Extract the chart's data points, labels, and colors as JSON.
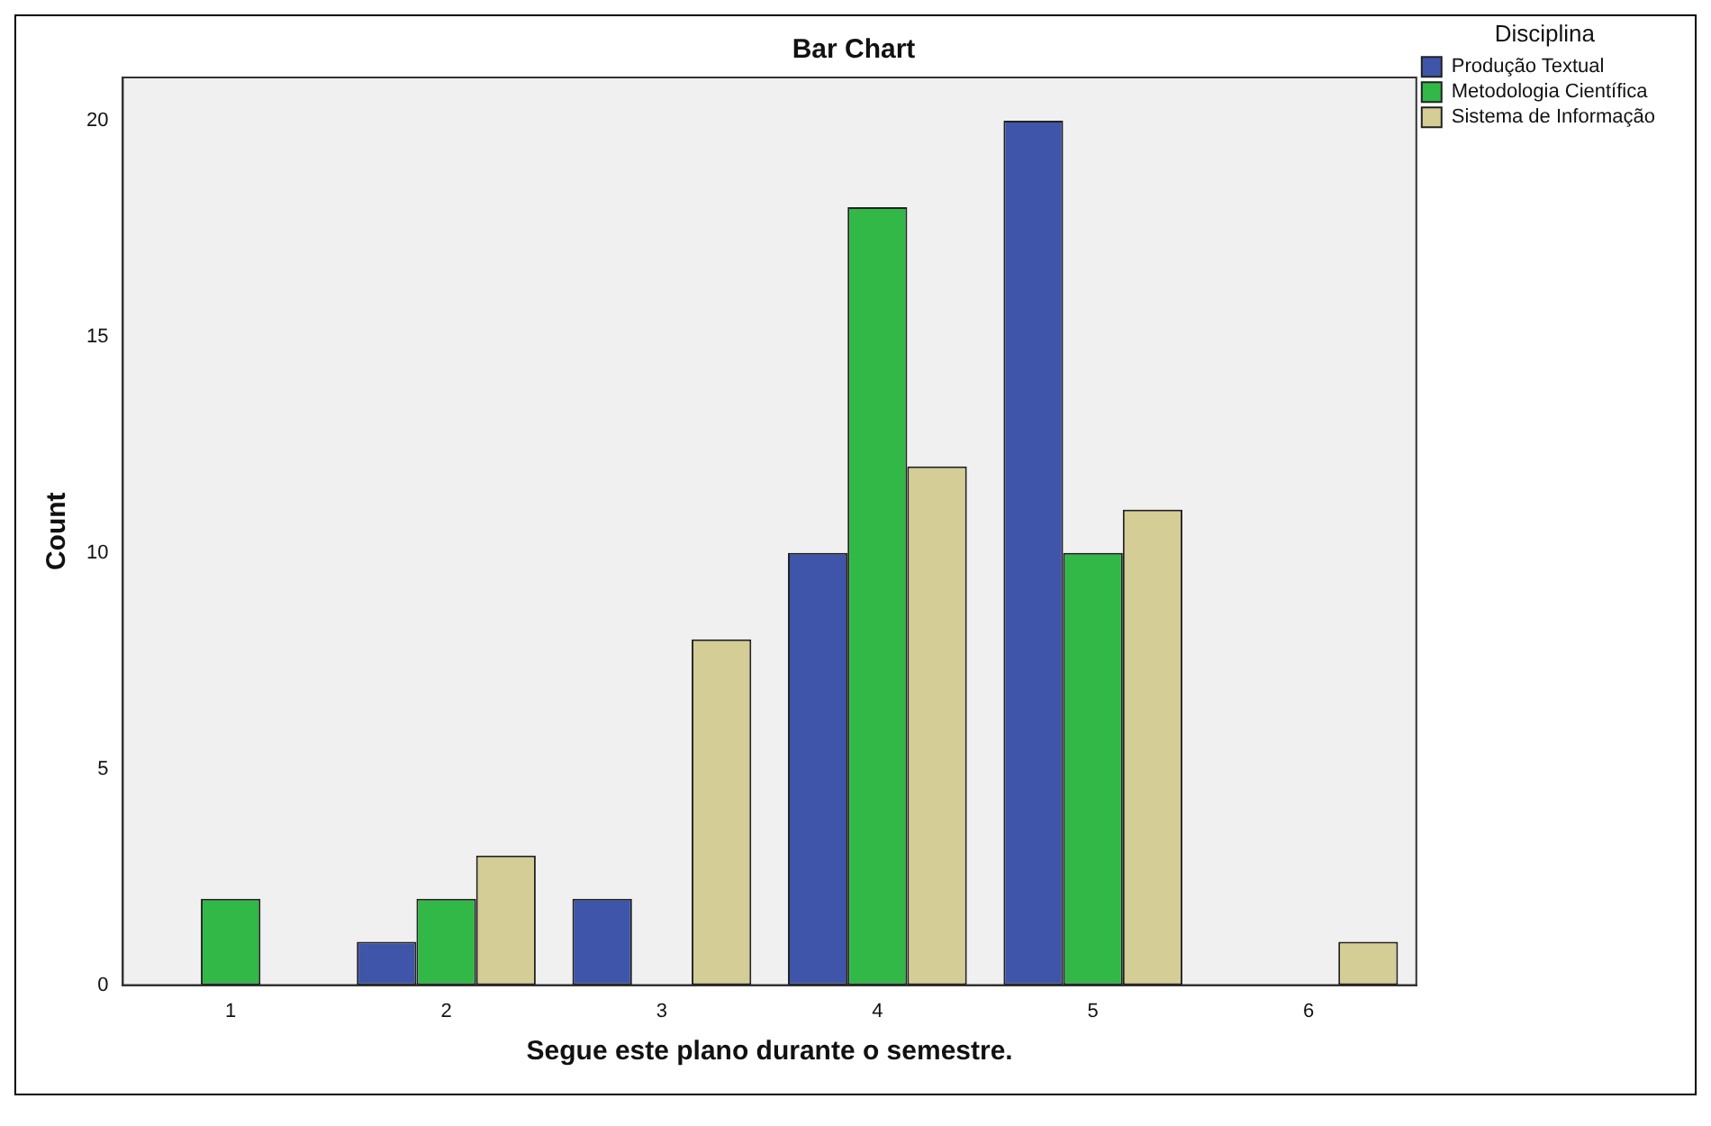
{
  "chart_data": {
    "type": "bar",
    "title": "Bar Chart",
    "xlabel": "Segue este plano durante o semestre.",
    "ylabel": "Count",
    "legend_title": "Disciplina",
    "categories": [
      "1",
      "2",
      "3",
      "4",
      "5",
      "6"
    ],
    "series": [
      {
        "name": "Produção Textual",
        "color": "#3e55a9",
        "values": [
          0,
          1,
          2,
          10,
          20,
          0
        ]
      },
      {
        "name": "Metodologia Científica",
        "color": "#31b847",
        "values": [
          2,
          2,
          0,
          18,
          10,
          0
        ]
      },
      {
        "name": "Sistema de Informação",
        "color": "#d4cd95",
        "values": [
          0,
          3,
          8,
          12,
          11,
          1
        ]
      }
    ],
    "ylim": [
      0,
      21
    ],
    "yticks": [
      0,
      5,
      10,
      15,
      20
    ],
    "grid": false,
    "legend": "top right"
  }
}
